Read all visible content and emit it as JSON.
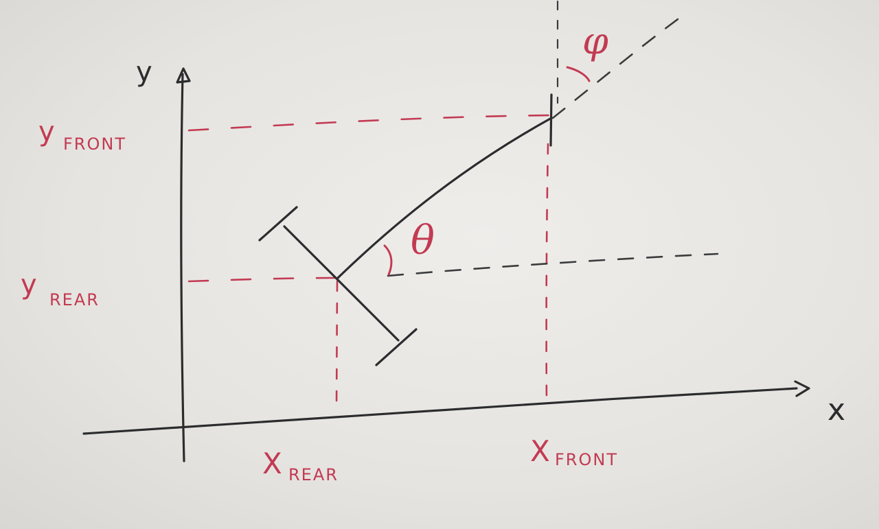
{
  "axes": {
    "x_label": "x",
    "y_label": "y"
  },
  "labels": {
    "y_front_main": "y",
    "y_front_sub": "FRONT",
    "y_rear_main": "y",
    "y_rear_sub": "REAR",
    "x_rear_main": "X",
    "x_rear_sub": "REAR",
    "x_front_main": "X",
    "x_front_sub": "FRONT",
    "theta": "θ",
    "phi": "φ"
  },
  "colors": {
    "ink": "#2b2c2e",
    "annotation": "#c23a52",
    "paper": "#e9e7e3"
  }
}
